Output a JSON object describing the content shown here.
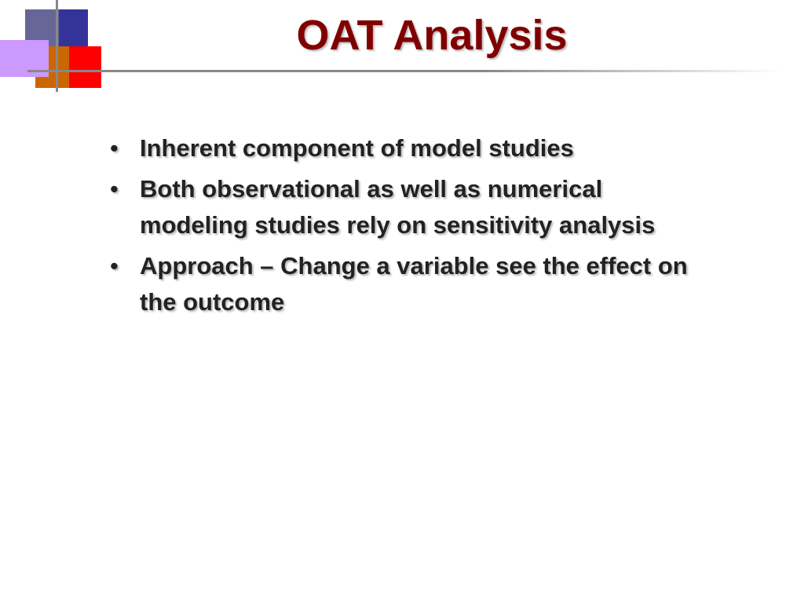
{
  "slide": {
    "title": "OAT Analysis",
    "accent_color": "#800000",
    "bullets": [
      {
        "text": "Inherent component of model studies"
      },
      {
        "text": "Both observational as well as numerical modeling studies rely on sensitivity analysis"
      },
      {
        "text": "Approach – Change a variable see the effect on the outcome"
      }
    ],
    "bullet_glyph": "•"
  }
}
